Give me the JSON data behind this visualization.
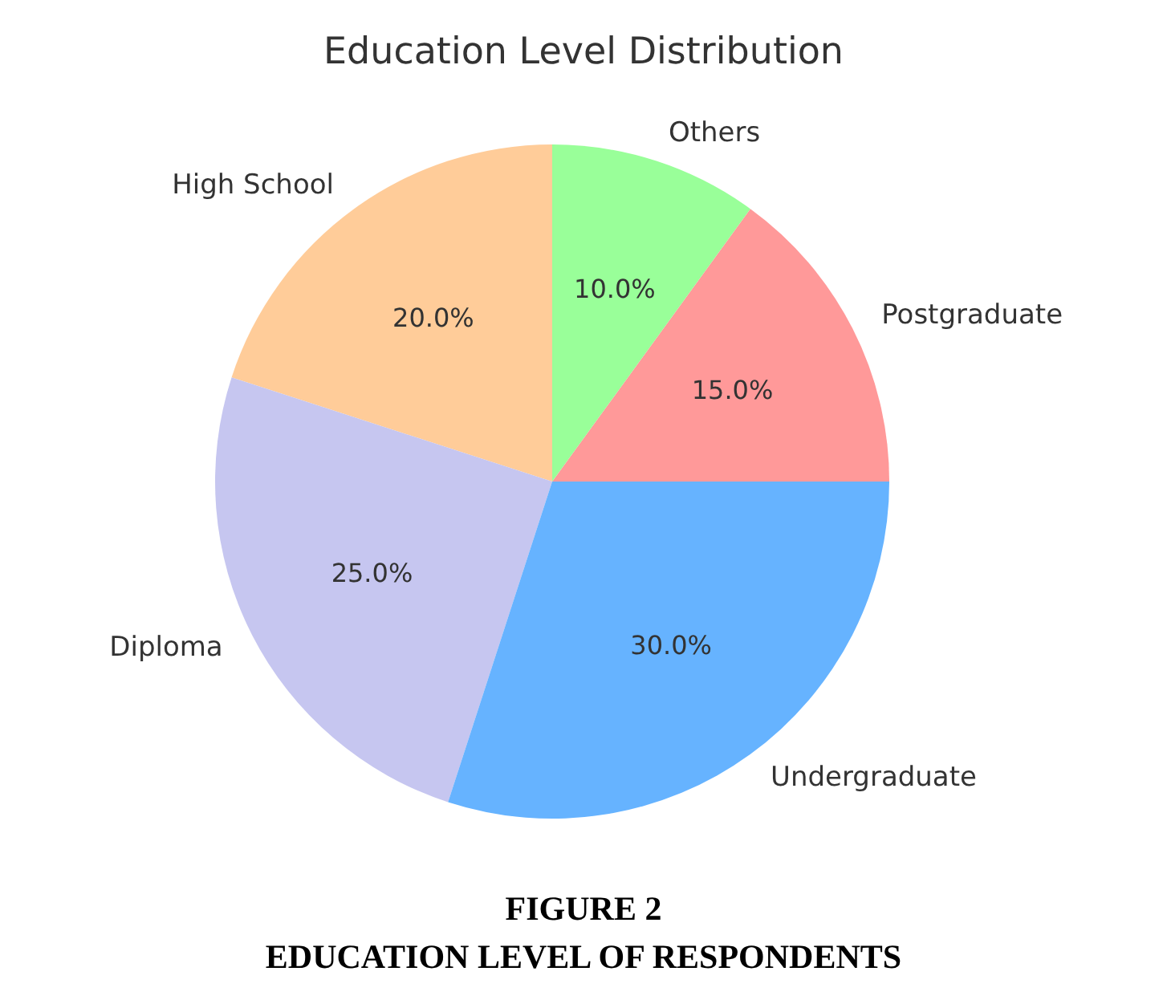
{
  "chart_data": {
    "type": "pie",
    "title": "Education Level Distribution",
    "categories": [
      "Postgraduate",
      "Others",
      "High School",
      "Diploma",
      "Undergraduate"
    ],
    "values": [
      15,
      10,
      20,
      25,
      30
    ],
    "colors": [
      "#ff9999",
      "#99ff99",
      "#ffcc99",
      "#c6c6f0",
      "#66b3ff"
    ],
    "value_labels": [
      "15.0%",
      "10.0%",
      "20.0%",
      "25.0%",
      "30.0%"
    ],
    "annotations": [
      "FIGURE 2",
      "EDUCATION LEVEL OF RESPONDENTS"
    ]
  }
}
